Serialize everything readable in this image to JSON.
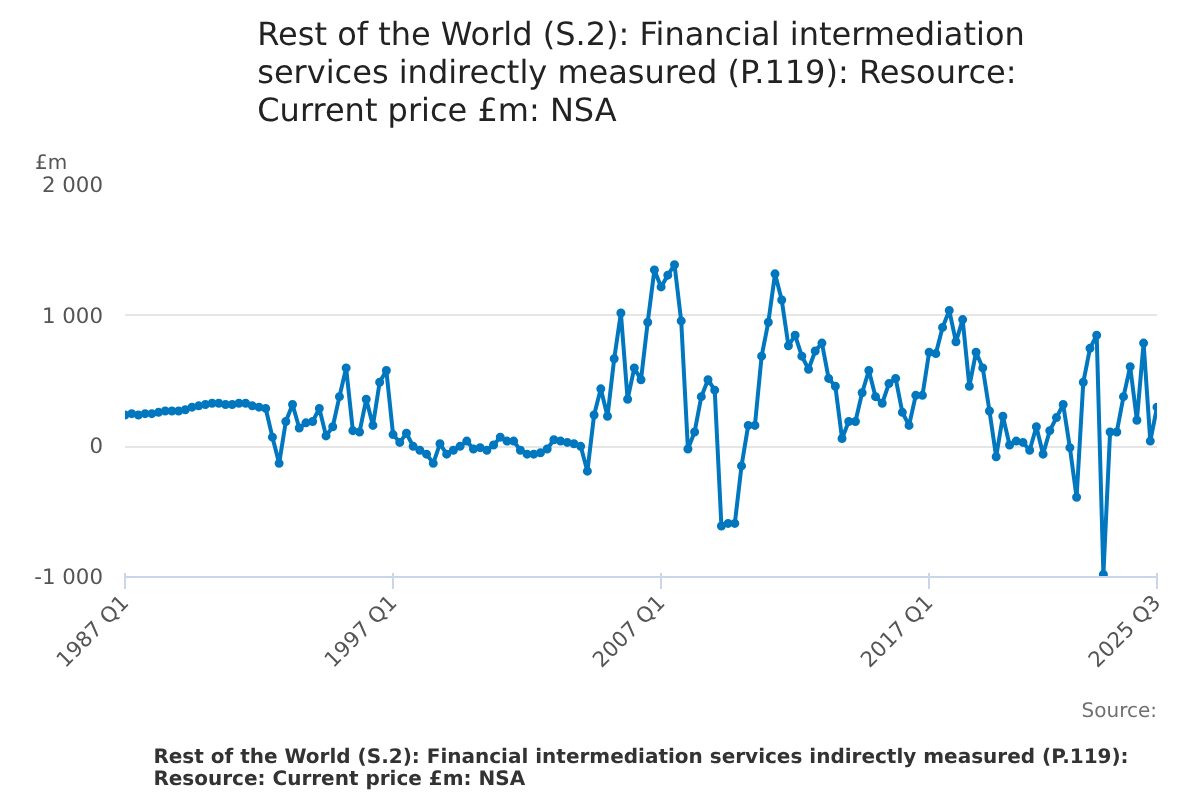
{
  "chart_data": {
    "type": "line",
    "title": "Rest of the World (S.2): Financial intermediation services indirectly measured (P.119): Resource: Current price £m: NSA",
    "ylabel": "£m",
    "annotations": [
      "Rest of the World (S.2): Financial intermediation services indirectly measured (P.119): Resource: Current price £m: NSA",
      "Source:"
    ],
    "categories": [
      "1987 Q1",
      null,
      null,
      null,
      null,
      null,
      null,
      null,
      null,
      null,
      null,
      null,
      null,
      null,
      null,
      null,
      null,
      null,
      null,
      null,
      null,
      null,
      null,
      null,
      null,
      null,
      null,
      null,
      null,
      null,
      null,
      null,
      null,
      null,
      null,
      null,
      null,
      null,
      null,
      null,
      "1997 Q1",
      null,
      null,
      null,
      null,
      null,
      null,
      null,
      null,
      null,
      null,
      null,
      null,
      null,
      null,
      null,
      null,
      null,
      null,
      null,
      null,
      null,
      null,
      null,
      null,
      null,
      null,
      null,
      null,
      null,
      null,
      null,
      null,
      null,
      null,
      null,
      null,
      null,
      null,
      null,
      "2007 Q1",
      null,
      null,
      null,
      null,
      null,
      null,
      null,
      null,
      null,
      null,
      null,
      null,
      null,
      null,
      null,
      null,
      null,
      null,
      null,
      null,
      null,
      null,
      null,
      null,
      null,
      null,
      null,
      null,
      null,
      null,
      null,
      null,
      null,
      null,
      null,
      null,
      null,
      null,
      null,
      "2017 Q1",
      null,
      null,
      null,
      null,
      null,
      null,
      null,
      null,
      null,
      null,
      null,
      null,
      null,
      null,
      null,
      null,
      null,
      null,
      null,
      null,
      null,
      null,
      null,
      null,
      null,
      null,
      null,
      null,
      null,
      null,
      null,
      null,
      null,
      "2025 Q3"
    ],
    "series": [
      {
        "color": "#0077bf",
        "values": [
          240,
          250,
          240,
          250,
          250,
          260,
          270,
          270,
          270,
          280,
          300,
          310,
          320,
          330,
          330,
          320,
          320,
          330,
          330,
          310,
          300,
          290,
          70,
          -130,
          190,
          320,
          140,
          180,
          190,
          290,
          80,
          150,
          380,
          600,
          120,
          110,
          360,
          160,
          490,
          580,
          90,
          30,
          100,
          0,
          -30,
          -60,
          -130,
          20,
          -60,
          -30,
          0,
          40,
          -20,
          -10,
          -30,
          10,
          70,
          40,
          40,
          -30,
          -60,
          -60,
          -50,
          -20,
          50,
          40,
          30,
          20,
          0,
          -190,
          240,
          440,
          230,
          670,
          1020,
          360,
          600,
          510,
          950,
          1350,
          1220,
          1310,
          1390,
          960,
          -20,
          110,
          380,
          510,
          430,
          -610,
          -590,
          -590,
          -150,
          160,
          160,
          690,
          950,
          1320,
          1120,
          770,
          850,
          690,
          590,
          730,
          790,
          520,
          460,
          60,
          190,
          190,
          410,
          580,
          380,
          330,
          480,
          520,
          260,
          160,
          390,
          390,
          720,
          710,
          910,
          1040,
          800,
          970,
          460,
          720,
          600,
          270,
          -80,
          230,
          10,
          40,
          30,
          -30,
          150,
          -60,
          120,
          220,
          320,
          -10,
          -390,
          490,
          750,
          850,
          -980,
          110,
          110,
          380,
          610,
          200,
          790,
          40,
          300
        ]
      }
    ],
    "ylim": [
      -1000,
      2000
    ],
    "yticks": [
      {
        "value": -1000,
        "label": "-1 000"
      },
      0,
      {
        "value": 1000,
        "label": "1 000"
      },
      {
        "value": 2000,
        "label": "2 000"
      }
    ],
    "grid": "y",
    "marker": "circle",
    "line_style": "solid"
  }
}
